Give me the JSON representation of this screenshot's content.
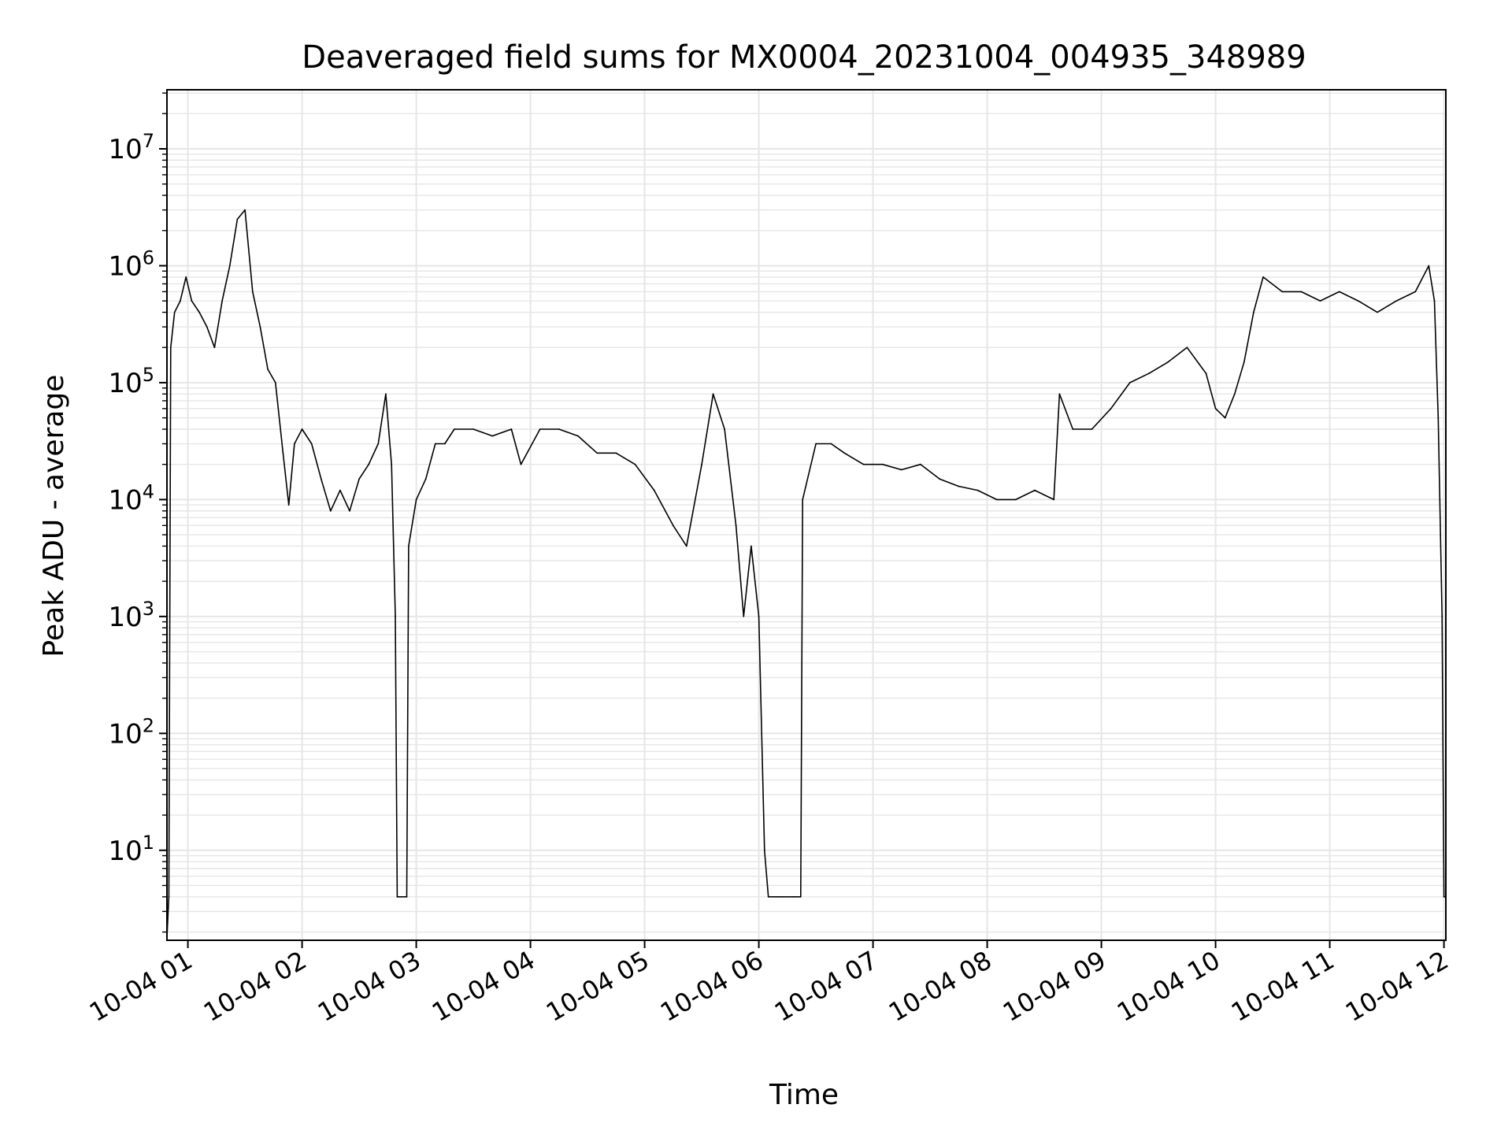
{
  "chart_data": {
    "type": "line",
    "title": "Deaveraged field sums for MX0004_20231004_004935_348989",
    "xlabel": "Time",
    "ylabel": "Peak ADU - average",
    "yscale": "log",
    "ylim": [
      1.7,
      32000000.0
    ],
    "xlim": [
      "2023-10-04 00:49",
      "2023-10-04 12:01"
    ],
    "grid": true,
    "legend": "none",
    "x_ticks": [
      {
        "x": "2023-10-04 01:00",
        "label": "10-04 01"
      },
      {
        "x": "2023-10-04 02:00",
        "label": "10-04 02"
      },
      {
        "x": "2023-10-04 03:00",
        "label": "10-04 03"
      },
      {
        "x": "2023-10-04 04:00",
        "label": "10-04 04"
      },
      {
        "x": "2023-10-04 05:00",
        "label": "10-04 05"
      },
      {
        "x": "2023-10-04 06:00",
        "label": "10-04 06"
      },
      {
        "x": "2023-10-04 07:00",
        "label": "10-04 07"
      },
      {
        "x": "2023-10-04 08:00",
        "label": "10-04 08"
      },
      {
        "x": "2023-10-04 09:00",
        "label": "10-04 09"
      },
      {
        "x": "2023-10-04 10:00",
        "label": "10-04 10"
      },
      {
        "x": "2023-10-04 11:00",
        "label": "10-04 11"
      },
      {
        "x": "2023-10-04 12:00",
        "label": "10-04 12"
      }
    ],
    "y_ticks": [
      {
        "value": 10,
        "base": "10",
        "exp": "1"
      },
      {
        "value": 100,
        "base": "10",
        "exp": "2"
      },
      {
        "value": 1000,
        "base": "10",
        "exp": "3"
      },
      {
        "value": 10000,
        "base": "10",
        "exp": "4"
      },
      {
        "value": 100000,
        "base": "10",
        "exp": "5"
      },
      {
        "value": 1000000,
        "base": "10",
        "exp": "6"
      },
      {
        "value": 10000000,
        "base": "10",
        "exp": "7"
      }
    ],
    "colors": {
      "line": "#000000",
      "grid": "#e6e6e6",
      "axes": "#000000"
    },
    "series": [
      {
        "points": [
          [
            "2023-10-04 00:49",
            1.8
          ],
          [
            "2023-10-04 00:50",
            4
          ],
          [
            "2023-10-04 00:51",
            200000.0
          ],
          [
            "2023-10-04 00:53",
            400000.0
          ],
          [
            "2023-10-04 00:56",
            500000.0
          ],
          [
            "2023-10-04 00:59",
            800000.0
          ],
          [
            "2023-10-04 01:02",
            500000.0
          ],
          [
            "2023-10-04 01:06",
            400000.0
          ],
          [
            "2023-10-04 01:10",
            300000.0
          ],
          [
            "2023-10-04 01:14",
            200000.0
          ],
          [
            "2023-10-04 01:18",
            500000.0
          ],
          [
            "2023-10-04 01:22",
            1000000.0
          ],
          [
            "2023-10-04 01:26",
            2500000.0
          ],
          [
            "2023-10-04 01:30",
            3000000.0
          ],
          [
            "2023-10-04 01:34",
            600000.0
          ],
          [
            "2023-10-04 01:38",
            300000.0
          ],
          [
            "2023-10-04 01:42",
            130000.0
          ],
          [
            "2023-10-04 01:46",
            100000.0
          ],
          [
            "2023-10-04 01:50",
            25000.0
          ],
          [
            "2023-10-04 01:53",
            9000.0
          ],
          [
            "2023-10-04 01:56",
            30000.0
          ],
          [
            "2023-10-04 02:00",
            40000.0
          ],
          [
            "2023-10-04 02:05",
            30000.0
          ],
          [
            "2023-10-04 02:10",
            15000.0
          ],
          [
            "2023-10-04 02:15",
            8000.0
          ],
          [
            "2023-10-04 02:20",
            12000.0
          ],
          [
            "2023-10-04 02:25",
            8000.0
          ],
          [
            "2023-10-04 02:30",
            15000.0
          ],
          [
            "2023-10-04 02:35",
            20000.0
          ],
          [
            "2023-10-04 02:40",
            30000.0
          ],
          [
            "2023-10-04 02:44",
            80000.0
          ],
          [
            "2023-10-04 02:47",
            20000.0
          ],
          [
            "2023-10-04 02:49",
            1000.0
          ],
          [
            "2023-10-04 02:50",
            4
          ],
          [
            "2023-10-04 02:55",
            4
          ],
          [
            "2023-10-04 02:56",
            4000.0
          ],
          [
            "2023-10-04 03:00",
            10000.0
          ],
          [
            "2023-10-04 03:05",
            15000.0
          ],
          [
            "2023-10-04 03:10",
            30000.0
          ],
          [
            "2023-10-04 03:15",
            30000.0
          ],
          [
            "2023-10-04 03:20",
            40000.0
          ],
          [
            "2023-10-04 03:30",
            40000.0
          ],
          [
            "2023-10-04 03:40",
            35000.0
          ],
          [
            "2023-10-04 03:50",
            40000.0
          ],
          [
            "2023-10-04 03:55",
            20000.0
          ],
          [
            "2023-10-04 04:05",
            40000.0
          ],
          [
            "2023-10-04 04:15",
            40000.0
          ],
          [
            "2023-10-04 04:25",
            35000.0
          ],
          [
            "2023-10-04 04:35",
            25000.0
          ],
          [
            "2023-10-04 04:45",
            25000.0
          ],
          [
            "2023-10-04 04:55",
            20000.0
          ],
          [
            "2023-10-04 05:05",
            12000.0
          ],
          [
            "2023-10-04 05:15",
            6000.0
          ],
          [
            "2023-10-04 05:22",
            4000.0
          ],
          [
            "2023-10-04 05:30",
            20000.0
          ],
          [
            "2023-10-04 05:36",
            80000.0
          ],
          [
            "2023-10-04 05:42",
            40000.0
          ],
          [
            "2023-10-04 05:48",
            6000.0
          ],
          [
            "2023-10-04 05:52",
            1000.0
          ],
          [
            "2023-10-04 05:56",
            4000.0
          ],
          [
            "2023-10-04 06:00",
            1000.0
          ],
          [
            "2023-10-04 06:03",
            10
          ],
          [
            "2023-10-04 06:05",
            4
          ],
          [
            "2023-10-04 06:12",
            4
          ],
          [
            "2023-10-04 06:18",
            4
          ],
          [
            "2023-10-04 06:22",
            4
          ],
          [
            "2023-10-04 06:23",
            10000.0
          ],
          [
            "2023-10-04 06:30",
            30000.0
          ],
          [
            "2023-10-04 06:38",
            30000.0
          ],
          [
            "2023-10-04 06:45",
            25000.0
          ],
          [
            "2023-10-04 06:55",
            20000.0
          ],
          [
            "2023-10-04 07:05",
            20000.0
          ],
          [
            "2023-10-04 07:15",
            18000.0
          ],
          [
            "2023-10-04 07:25",
            20000.0
          ],
          [
            "2023-10-04 07:35",
            15000.0
          ],
          [
            "2023-10-04 07:45",
            13000.0
          ],
          [
            "2023-10-04 07:55",
            12000.0
          ],
          [
            "2023-10-04 08:05",
            10000.0
          ],
          [
            "2023-10-04 08:15",
            10000.0
          ],
          [
            "2023-10-04 08:25",
            12000.0
          ],
          [
            "2023-10-04 08:35",
            10000.0
          ],
          [
            "2023-10-04 08:38",
            80000.0
          ],
          [
            "2023-10-04 08:45",
            40000.0
          ],
          [
            "2023-10-04 08:55",
            40000.0
          ],
          [
            "2023-10-04 09:05",
            60000.0
          ],
          [
            "2023-10-04 09:15",
            100000.0
          ],
          [
            "2023-10-04 09:25",
            120000.0
          ],
          [
            "2023-10-04 09:35",
            150000.0
          ],
          [
            "2023-10-04 09:45",
            200000.0
          ],
          [
            "2023-10-04 09:55",
            120000.0
          ],
          [
            "2023-10-04 10:00",
            60000.0
          ],
          [
            "2023-10-04 10:05",
            50000.0
          ],
          [
            "2023-10-04 10:10",
            80000.0
          ],
          [
            "2023-10-04 10:15",
            150000.0
          ],
          [
            "2023-10-04 10:20",
            400000.0
          ],
          [
            "2023-10-04 10:25",
            800000.0
          ],
          [
            "2023-10-04 10:35",
            600000.0
          ],
          [
            "2023-10-04 10:45",
            600000.0
          ],
          [
            "2023-10-04 10:55",
            500000.0
          ],
          [
            "2023-10-04 11:05",
            600000.0
          ],
          [
            "2023-10-04 11:15",
            500000.0
          ],
          [
            "2023-10-04 11:25",
            400000.0
          ],
          [
            "2023-10-04 11:35",
            500000.0
          ],
          [
            "2023-10-04 11:45",
            600000.0
          ],
          [
            "2023-10-04 11:52",
            1000000.0
          ],
          [
            "2023-10-04 11:55",
            500000.0
          ],
          [
            "2023-10-04 11:57",
            50000.0
          ],
          [
            "2023-10-04 11:59",
            1000.0
          ],
          [
            "2023-10-04 12:00",
            4
          ],
          [
            "2023-10-04 12:01",
            4
          ]
        ]
      }
    ]
  }
}
